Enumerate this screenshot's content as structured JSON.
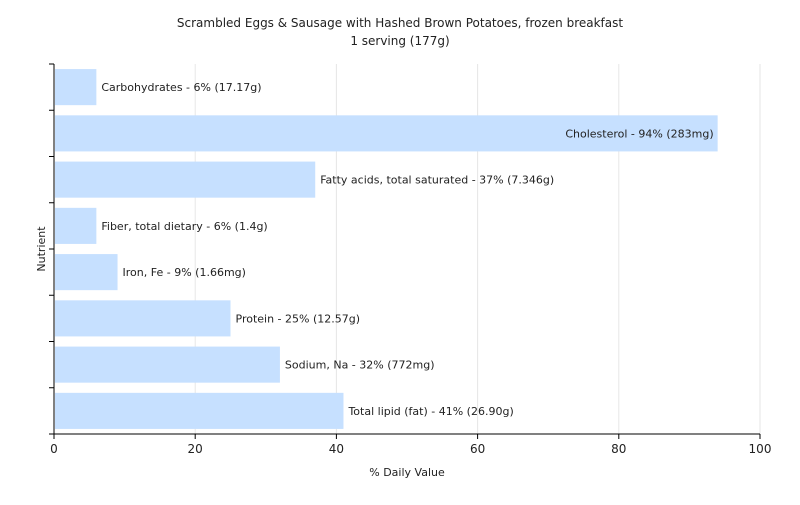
{
  "chart_data": {
    "type": "bar",
    "orientation": "horizontal",
    "title": "Scrambled Eggs & Sausage with Hashed Brown Potatoes, frozen breakfast",
    "subtitle": "1 serving (177g)",
    "xlabel": "% Daily Value",
    "ylabel": "Nutrient",
    "xlim": [
      0,
      100
    ],
    "xticks": [
      0,
      20,
      40,
      60,
      80,
      100
    ],
    "grid": true,
    "bar_color": "#c6e0ff",
    "categories": [
      "Carbohydrates",
      "Cholesterol",
      "Fatty acids, total saturated",
      "Fiber, total dietary",
      "Iron, Fe",
      "Protein",
      "Sodium, Na",
      "Total lipid (fat)"
    ],
    "values": [
      6,
      94,
      37,
      6,
      9,
      25,
      32,
      41
    ],
    "labels": [
      "Carbohydrates - 6% (17.17g)",
      "Cholesterol - 94% (283mg)",
      "Fatty acids, total saturated - 37% (7.346g)",
      "Fiber, total dietary - 6% (1.4g)",
      "Iron, Fe - 9% (1.66mg)",
      "Protein - 25% (12.57g)",
      "Sodium, Na - 32% (772mg)",
      "Total lipid (fat) - 41% (26.90g)"
    ]
  }
}
